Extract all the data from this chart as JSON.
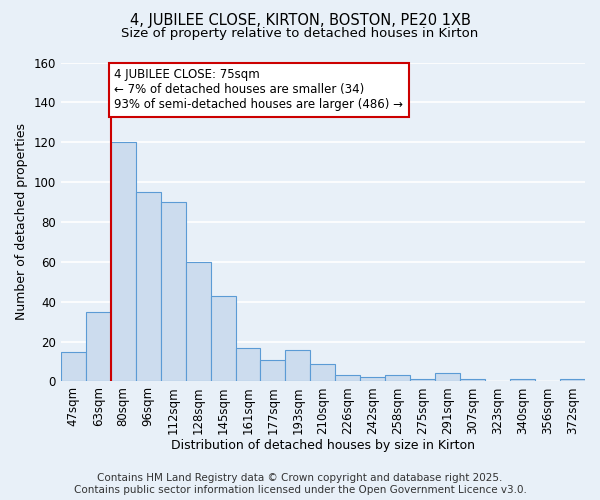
{
  "title1": "4, JUBILEE CLOSE, KIRTON, BOSTON, PE20 1XB",
  "title2": "Size of property relative to detached houses in Kirton",
  "xlabel": "Distribution of detached houses by size in Kirton",
  "ylabel": "Number of detached properties",
  "categories": [
    "47sqm",
    "63sqm",
    "80sqm",
    "96sqm",
    "112sqm",
    "128sqm",
    "145sqm",
    "161sqm",
    "177sqm",
    "193sqm",
    "210sqm",
    "226sqm",
    "242sqm",
    "258sqm",
    "275sqm",
    "291sqm",
    "307sqm",
    "323sqm",
    "340sqm",
    "356sqm",
    "372sqm"
  ],
  "values": [
    15,
    35,
    120,
    95,
    90,
    60,
    43,
    17,
    11,
    16,
    9,
    3,
    2,
    3,
    1,
    4,
    1,
    0,
    1,
    0,
    1
  ],
  "bar_color": "#ccdcee",
  "bar_edge_color": "#5b9bd5",
  "bg_color": "#e8f0f8",
  "grid_color": "#ffffff",
  "annotation_text": "4 JUBILEE CLOSE: 75sqm\n← 7% of detached houses are smaller (34)\n93% of semi-detached houses are larger (486) →",
  "annotation_box_color": "#ffffff",
  "annotation_box_edge_color": "#cc0000",
  "vline_color": "#cc0000",
  "ylim": [
    0,
    160
  ],
  "yticks": [
    0,
    20,
    40,
    60,
    80,
    100,
    120,
    140,
    160
  ],
  "footer": "Contains HM Land Registry data © Crown copyright and database right 2025.\nContains public sector information licensed under the Open Government Licence v3.0.",
  "title1_fontsize": 10.5,
  "title2_fontsize": 9.5,
  "xlabel_fontsize": 9,
  "ylabel_fontsize": 9,
  "tick_fontsize": 8.5,
  "footer_fontsize": 7.5,
  "ann_fontsize": 8.5
}
